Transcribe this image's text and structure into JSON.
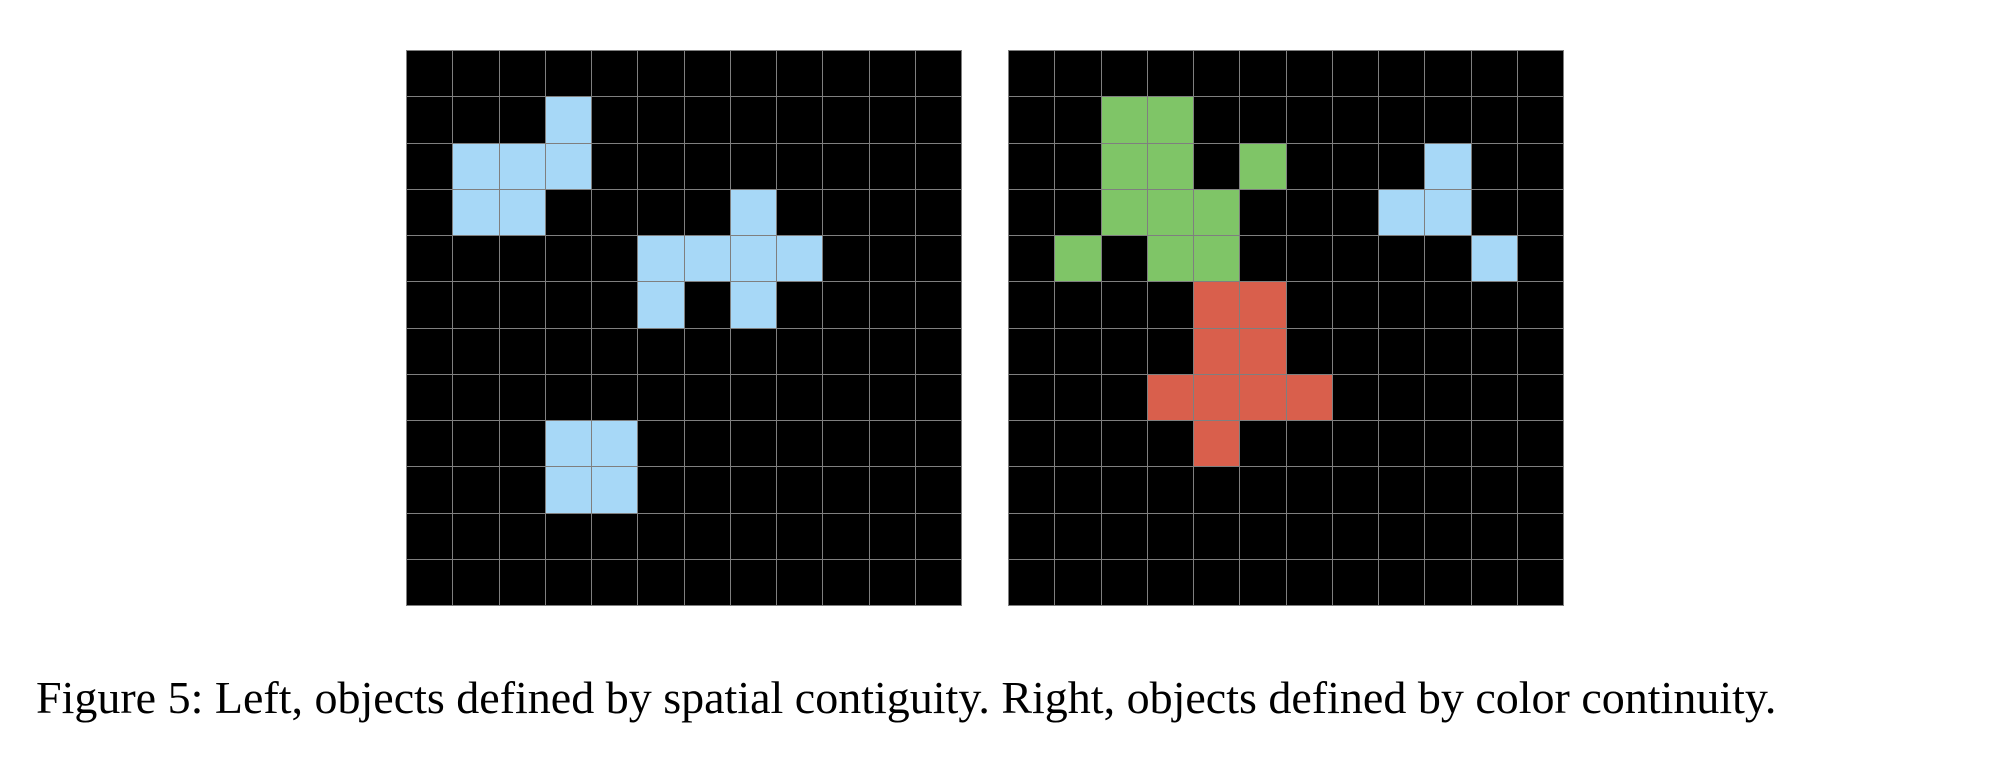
{
  "figure": {
    "caption": "Figure 5: Left, objects defined by spatial contiguity. Right, objects defined by color continuity.",
    "palette": {
      "0": "#000000",
      "1": "#a7d8f7",
      "2": "#7fc567",
      "3": "#d95f4c"
    },
    "grid_line_color": "#7f7f7f",
    "grids": [
      {
        "name": "left-grid",
        "rows": [
          [
            0,
            0,
            0,
            0,
            0,
            0,
            0,
            0,
            0,
            0,
            0,
            0
          ],
          [
            0,
            0,
            0,
            1,
            0,
            0,
            0,
            0,
            0,
            0,
            0,
            0
          ],
          [
            0,
            1,
            1,
            1,
            0,
            0,
            0,
            0,
            0,
            0,
            0,
            0
          ],
          [
            0,
            1,
            1,
            0,
            0,
            0,
            0,
            1,
            0,
            0,
            0,
            0
          ],
          [
            0,
            0,
            0,
            0,
            0,
            1,
            1,
            1,
            1,
            0,
            0,
            0
          ],
          [
            0,
            0,
            0,
            0,
            0,
            1,
            0,
            1,
            0,
            0,
            0,
            0
          ],
          [
            0,
            0,
            0,
            0,
            0,
            0,
            0,
            0,
            0,
            0,
            0,
            0
          ],
          [
            0,
            0,
            0,
            0,
            0,
            0,
            0,
            0,
            0,
            0,
            0,
            0
          ],
          [
            0,
            0,
            0,
            1,
            1,
            0,
            0,
            0,
            0,
            0,
            0,
            0
          ],
          [
            0,
            0,
            0,
            1,
            1,
            0,
            0,
            0,
            0,
            0,
            0,
            0
          ],
          [
            0,
            0,
            0,
            0,
            0,
            0,
            0,
            0,
            0,
            0,
            0,
            0
          ],
          [
            0,
            0,
            0,
            0,
            0,
            0,
            0,
            0,
            0,
            0,
            0,
            0
          ]
        ]
      },
      {
        "name": "right-grid",
        "rows": [
          [
            0,
            0,
            0,
            0,
            0,
            0,
            0,
            0,
            0,
            0,
            0,
            0
          ],
          [
            0,
            0,
            2,
            2,
            0,
            0,
            0,
            0,
            0,
            0,
            0,
            0
          ],
          [
            0,
            0,
            2,
            2,
            0,
            2,
            0,
            0,
            0,
            1,
            0,
            0
          ],
          [
            0,
            0,
            2,
            2,
            2,
            0,
            0,
            0,
            1,
            1,
            0,
            0
          ],
          [
            0,
            2,
            0,
            2,
            2,
            0,
            0,
            0,
            0,
            0,
            1,
            0
          ],
          [
            0,
            0,
            0,
            0,
            3,
            3,
            0,
            0,
            0,
            0,
            0,
            0
          ],
          [
            0,
            0,
            0,
            0,
            3,
            3,
            0,
            0,
            0,
            0,
            0,
            0
          ],
          [
            0,
            0,
            0,
            3,
            3,
            3,
            3,
            0,
            0,
            0,
            0,
            0
          ],
          [
            0,
            0,
            0,
            0,
            3,
            0,
            0,
            0,
            0,
            0,
            0,
            0
          ],
          [
            0,
            0,
            0,
            0,
            0,
            0,
            0,
            0,
            0,
            0,
            0,
            0
          ],
          [
            0,
            0,
            0,
            0,
            0,
            0,
            0,
            0,
            0,
            0,
            0,
            0
          ],
          [
            0,
            0,
            0,
            0,
            0,
            0,
            0,
            0,
            0,
            0,
            0,
            0
          ]
        ]
      }
    ]
  }
}
